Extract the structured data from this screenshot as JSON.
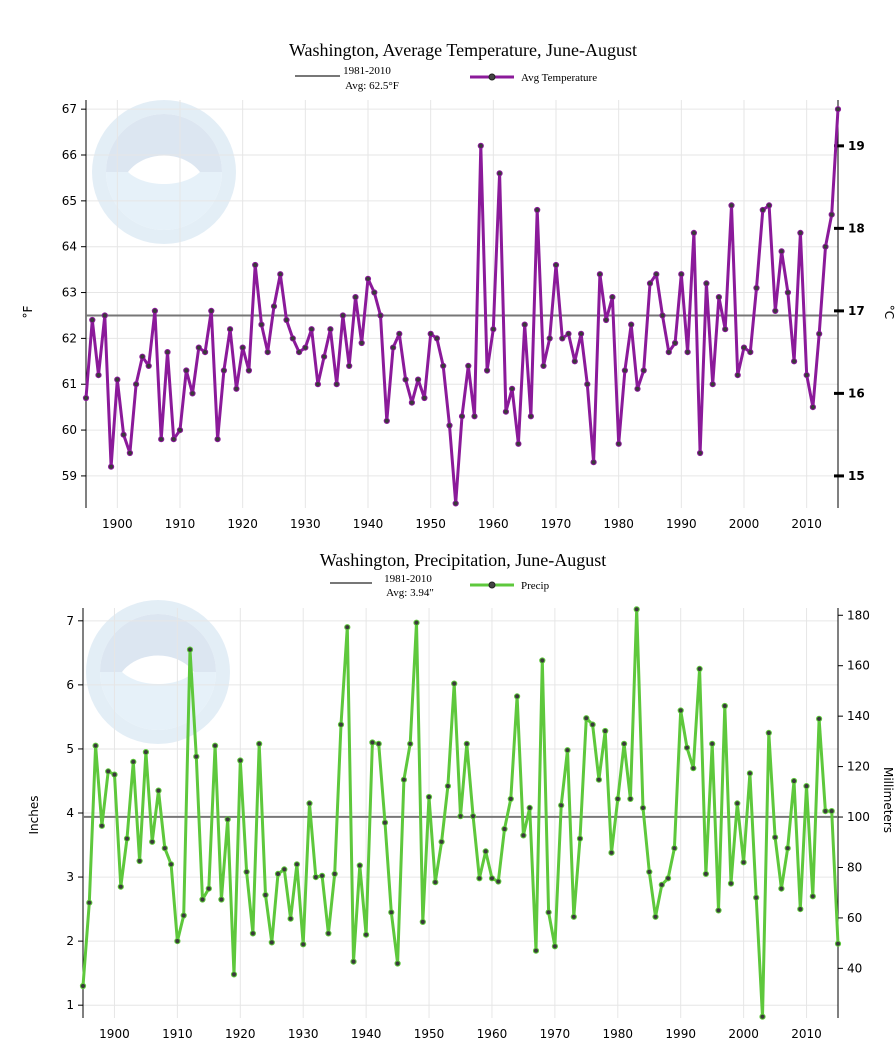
{
  "chart_data": [
    {
      "type": "line",
      "title": "Washington, Average Temperature, June-August",
      "legend": {
        "position": "top-center",
        "entries": [
          {
            "label_line1": "1981-2010",
            "label_line2": "Avg: 62.5°F",
            "style": "reference-line"
          },
          {
            "label_line1": "Avg Temperature",
            "label_line2": "",
            "style": "line-marker"
          }
        ]
      },
      "ylabel": "°F",
      "y2label": "°C",
      "xlabel": "",
      "xlim": [
        1895,
        2015
      ],
      "ylim": [
        58.3,
        67.2
      ],
      "xticks": [
        1900,
        1910,
        1920,
        1930,
        1940,
        1950,
        1960,
        1970,
        1980,
        1990,
        2000,
        2010
      ],
      "yticks": [
        59,
        60,
        61,
        62,
        63,
        64,
        65,
        66,
        67
      ],
      "y2ticks": [
        15,
        16,
        17,
        18,
        19
      ],
      "reference": 62.5,
      "grid": true,
      "colors": {
        "series": "#8b1a9a",
        "reference": "#777777"
      },
      "x": [
        1895,
        1896,
        1897,
        1898,
        1899,
        1900,
        1901,
        1902,
        1903,
        1904,
        1905,
        1906,
        1907,
        1908,
        1909,
        1910,
        1911,
        1912,
        1913,
        1914,
        1915,
        1916,
        1917,
        1918,
        1919,
        1920,
        1921,
        1922,
        1923,
        1924,
        1925,
        1926,
        1927,
        1928,
        1929,
        1930,
        1931,
        1932,
        1933,
        1934,
        1935,
        1936,
        1937,
        1938,
        1939,
        1940,
        1941,
        1942,
        1943,
        1944,
        1945,
        1946,
        1947,
        1948,
        1949,
        1950,
        1951,
        1952,
        1953,
        1954,
        1955,
        1956,
        1957,
        1958,
        1959,
        1960,
        1961,
        1962,
        1963,
        1964,
        1965,
        1966,
        1967,
        1968,
        1969,
        1970,
        1971,
        1972,
        1973,
        1974,
        1975,
        1976,
        1977,
        1978,
        1979,
        1980,
        1981,
        1982,
        1983,
        1984,
        1985,
        1986,
        1987,
        1988,
        1989,
        1990,
        1991,
        1992,
        1993,
        1994,
        1995,
        1996,
        1997,
        1998,
        1999,
        2000,
        2001,
        2002,
        2003,
        2004,
        2005,
        2006,
        2007,
        2008,
        2009,
        2010,
        2011,
        2012,
        2013,
        2014,
        2015
      ],
      "series": [
        {
          "name": "Avg Temperature",
          "values": [
            60.7,
            62.4,
            61.2,
            62.5,
            59.2,
            61.1,
            59.9,
            59.5,
            61.0,
            61.6,
            61.4,
            62.6,
            59.8,
            61.7,
            59.8,
            60.0,
            61.3,
            60.8,
            61.8,
            61.7,
            62.6,
            59.8,
            61.3,
            62.2,
            60.9,
            61.8,
            61.3,
            63.6,
            62.3,
            61.7,
            62.7,
            63.4,
            62.4,
            62.0,
            61.7,
            61.8,
            62.2,
            61.0,
            61.6,
            62.2,
            61.0,
            62.5,
            61.4,
            62.9,
            61.9,
            63.3,
            63.0,
            62.5,
            60.2,
            61.8,
            62.1,
            61.1,
            60.6,
            61.1,
            60.7,
            62.1,
            62.0,
            61.4,
            60.1,
            58.4,
            60.3,
            61.4,
            60.3,
            66.2,
            61.3,
            62.2,
            65.6,
            60.4,
            60.9,
            59.7,
            62.3,
            60.3,
            64.8,
            61.4,
            62.0,
            63.6,
            62.0,
            62.1,
            61.5,
            62.1,
            61.0,
            59.3,
            63.4,
            62.4,
            62.9,
            59.7,
            61.3,
            62.3,
            60.9,
            61.3,
            63.2,
            63.4,
            62.5,
            61.7,
            61.9,
            63.4,
            61.7,
            64.3,
            59.5,
            63.2,
            61.0,
            62.9,
            62.2,
            64.9,
            61.2,
            61.8,
            61.7,
            63.1,
            64.8,
            64.9,
            62.6,
            63.9,
            63.0,
            61.5,
            64.3,
            61.2,
            60.5,
            62.1,
            64.0,
            64.7,
            67.0
          ]
        }
      ]
    },
    {
      "type": "line",
      "title": "Washington, Precipitation, June-August",
      "legend": {
        "position": "top-center",
        "entries": [
          {
            "label_line1": "1981-2010",
            "label_line2": "Avg: 3.94\"",
            "style": "reference-line"
          },
          {
            "label_line1": "Precip",
            "label_line2": "",
            "style": "line-marker"
          }
        ]
      },
      "ylabel": "Inches",
      "y2label": "Millimeters",
      "xlabel": "",
      "xlim": [
        1895,
        2015
      ],
      "ylim": [
        0.8,
        7.2
      ],
      "xticks": [
        1900,
        1910,
        1920,
        1930,
        1940,
        1950,
        1960,
        1970,
        1980,
        1990,
        2000,
        2010
      ],
      "yticks": [
        1,
        2,
        3,
        4,
        5,
        6,
        7
      ],
      "y2ticks": [
        40,
        60,
        80,
        100,
        120,
        140,
        160,
        180
      ],
      "reference": 3.94,
      "grid": true,
      "colors": {
        "series": "#5ec83c",
        "reference": "#777777"
      },
      "x": [
        1895,
        1896,
        1897,
        1898,
        1899,
        1900,
        1901,
        1902,
        1903,
        1904,
        1905,
        1906,
        1907,
        1908,
        1909,
        1910,
        1911,
        1912,
        1913,
        1914,
        1915,
        1916,
        1917,
        1918,
        1919,
        1920,
        1921,
        1922,
        1923,
        1924,
        1925,
        1926,
        1927,
        1928,
        1929,
        1930,
        1931,
        1932,
        1933,
        1934,
        1935,
        1936,
        1937,
        1938,
        1939,
        1940,
        1941,
        1942,
        1943,
        1944,
        1945,
        1946,
        1947,
        1948,
        1949,
        1950,
        1951,
        1952,
        1953,
        1954,
        1955,
        1956,
        1957,
        1958,
        1959,
        1960,
        1961,
        1962,
        1963,
        1964,
        1965,
        1966,
        1967,
        1968,
        1969,
        1970,
        1971,
        1972,
        1973,
        1974,
        1975,
        1976,
        1977,
        1978,
        1979,
        1980,
        1981,
        1982,
        1983,
        1984,
        1985,
        1986,
        1987,
        1988,
        1989,
        1990,
        1991,
        1992,
        1993,
        1994,
        1995,
        1996,
        1997,
        1998,
        1999,
        2000,
        2001,
        2002,
        2003,
        2004,
        2005,
        2006,
        2007,
        2008,
        2009,
        2010,
        2011,
        2012,
        2013,
        2014,
        2015
      ],
      "series": [
        {
          "name": "Precip",
          "values": [
            1.3,
            2.6,
            5.05,
            3.8,
            4.65,
            4.6,
            2.85,
            3.6,
            4.8,
            3.25,
            4.95,
            3.55,
            4.35,
            3.45,
            3.2,
            2.0,
            2.4,
            6.55,
            4.88,
            2.65,
            2.82,
            5.05,
            2.65,
            3.9,
            1.48,
            4.82,
            3.08,
            2.12,
            5.08,
            2.72,
            1.98,
            3.05,
            3.12,
            2.35,
            3.2,
            1.95,
            4.15,
            3.0,
            3.02,
            2.12,
            3.05,
            5.38,
            6.9,
            1.68,
            3.18,
            2.1,
            5.1,
            5.08,
            3.85,
            2.45,
            1.65,
            4.52,
            5.08,
            6.97,
            2.3,
            4.25,
            2.92,
            3.55,
            4.42,
            6.02,
            3.95,
            5.08,
            3.95,
            2.98,
            3.4,
            2.98,
            2.93,
            3.75,
            4.22,
            5.82,
            3.65,
            4.08,
            1.85,
            6.38,
            2.45,
            1.92,
            4.12,
            4.98,
            2.38,
            3.6,
            5.48,
            5.38,
            4.52,
            5.28,
            3.38,
            4.22,
            5.08,
            4.22,
            7.18,
            4.08,
            3.08,
            2.38,
            2.88,
            2.98,
            3.45,
            5.6,
            5.02,
            4.7,
            6.25,
            3.05,
            5.08,
            2.48,
            5.67,
            2.9,
            4.15,
            3.23,
            4.62,
            2.68,
            0.82,
            5.25,
            3.62,
            2.82,
            3.45,
            4.5,
            2.5,
            4.42,
            2.7,
            5.47,
            4.03,
            4.03,
            1.96
          ]
        }
      ]
    }
  ]
}
